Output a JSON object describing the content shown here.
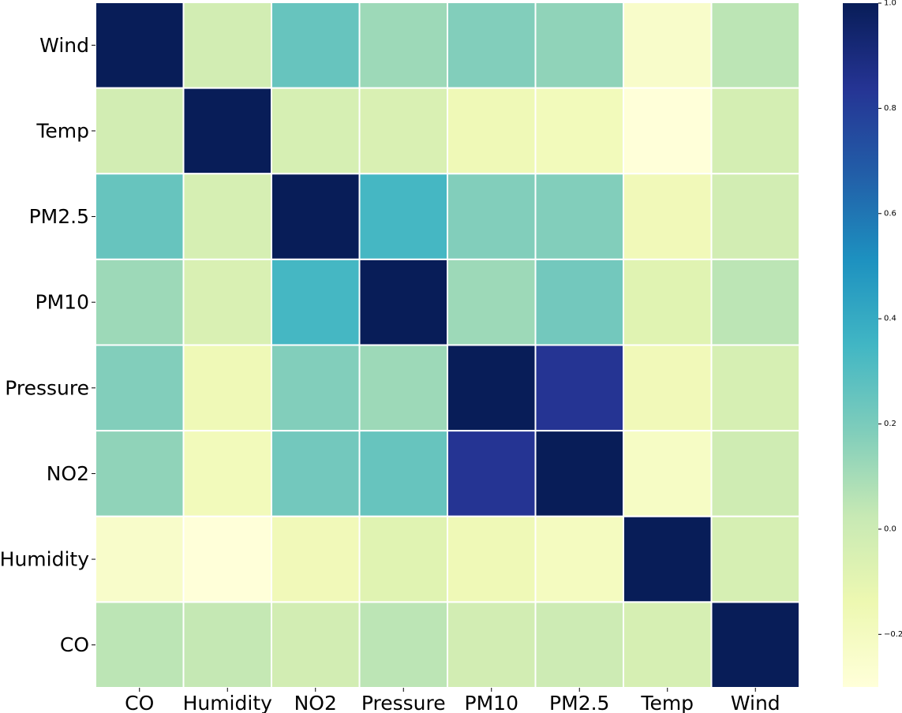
{
  "chart_data": {
    "type": "heatmap",
    "title": "",
    "xlabel": "",
    "ylabel": "",
    "x_labels": [
      "CO",
      "Humidity",
      "NO2",
      "Pressure",
      "PM10",
      "PM2.5",
      "Temp",
      "Wind"
    ],
    "y_labels": [
      "Wind",
      "Temp",
      "PM2.5",
      "PM10",
      "Pressure",
      "NO2",
      "Humidity",
      "CO"
    ],
    "values": [
      [
        1.0,
        -0.02,
        0.25,
        0.12,
        0.18,
        0.15,
        -0.24,
        0.05
      ],
      [
        -0.02,
        1.0,
        -0.04,
        -0.05,
        -0.16,
        -0.18,
        -0.3,
        -0.03
      ],
      [
        0.25,
        -0.04,
        1.0,
        0.34,
        0.18,
        0.18,
        -0.17,
        -0.02
      ],
      [
        0.12,
        -0.05,
        0.34,
        1.0,
        0.12,
        0.22,
        -0.08,
        0.05
      ],
      [
        0.18,
        -0.16,
        0.18,
        0.12,
        1.0,
        0.84,
        -0.17,
        -0.04
      ],
      [
        0.15,
        -0.18,
        0.22,
        0.25,
        0.84,
        1.0,
        -0.22,
        -0.01
      ],
      [
        -0.24,
        -0.3,
        -0.17,
        -0.08,
        -0.16,
        -0.2,
        1.0,
        -0.04
      ],
      [
        0.05,
        0.03,
        -0.02,
        0.05,
        -0.02,
        0.0,
        -0.04,
        1.0
      ]
    ],
    "vmin": -0.3,
    "vmax": 1.0,
    "colormap": "YlGnBu",
    "colormap_stops": [
      "#ffffd9",
      "#edf8b1",
      "#c7e9b4",
      "#7fcdbb",
      "#41b6c4",
      "#1d91c0",
      "#225ea8",
      "#253494",
      "#081d58"
    ],
    "cell_line_color": "#ffffff",
    "colorbar": {
      "ticks": [
        -0.2,
        0.0,
        0.2,
        0.4,
        0.6,
        0.8,
        1.0
      ],
      "tick_labels": [
        "−0.2",
        "0.0",
        "0.2",
        "0.4",
        "0.6",
        "0.8",
        "1.0"
      ]
    },
    "grid": false,
    "legend": "colorbar-right"
  }
}
